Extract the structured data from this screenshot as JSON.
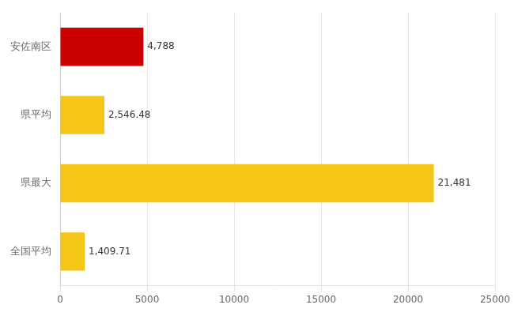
{
  "chart_data": {
    "type": "bar",
    "orientation": "horizontal",
    "categories": [
      "安佐南区",
      "県平均",
      "県最大",
      "全国平均"
    ],
    "values": [
      4788,
      2546.48,
      21481,
      1409.71
    ],
    "value_labels": [
      "4,788",
      "2,546.48",
      "21,481",
      "1,409.71"
    ],
    "data_labels": true,
    "colors": [
      "#cc0000",
      "#f5c518",
      "#f5c518",
      "#f5c518"
    ],
    "xlim": [
      0,
      25000
    ],
    "xticks": [
      0,
      5000,
      10000,
      15000,
      20000,
      25000
    ],
    "grid": true
  }
}
